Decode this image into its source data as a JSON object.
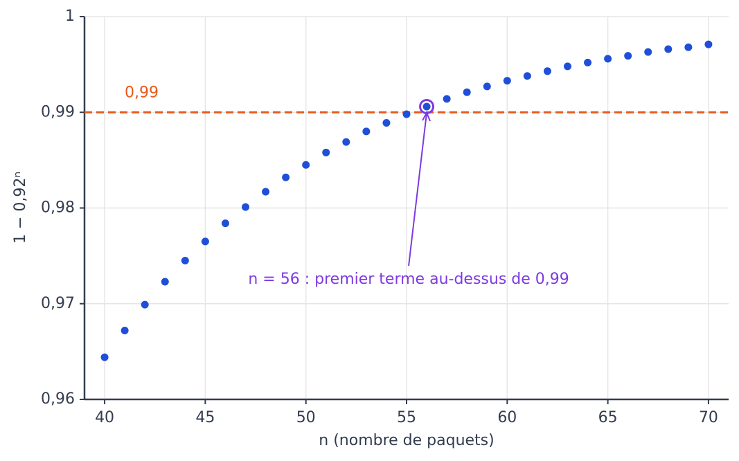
{
  "chart_data": {
    "type": "scatter",
    "xlabel": "n (nombre de paquets)",
    "ylabel": "1 − 0,92ⁿ",
    "x": [
      40,
      41,
      42,
      43,
      44,
      45,
      46,
      47,
      48,
      49,
      50,
      51,
      52,
      53,
      54,
      55,
      56,
      57,
      58,
      59,
      60,
      61,
      62,
      63,
      64,
      65,
      66,
      67,
      68,
      69,
      70
    ],
    "values": [
      0.9644,
      0.9672,
      0.9699,
      0.9723,
      0.9745,
      0.9765,
      0.9784,
      0.9801,
      0.9817,
      0.9832,
      0.9845,
      0.9858,
      0.9869,
      0.988,
      0.9889,
      0.9898,
      0.9906,
      0.9914,
      0.9921,
      0.9927,
      0.9933,
      0.9938,
      0.9943,
      0.9948,
      0.9952,
      0.9956,
      0.9959,
      0.9963,
      0.9966,
      0.9968,
      0.9971
    ],
    "color": "#1f4fd8",
    "xlim": [
      39,
      71
    ],
    "ylim": [
      0.96,
      1
    ],
    "xticks": [
      40,
      45,
      50,
      55,
      60,
      65,
      70
    ],
    "yticks": [
      {
        "value": 0.96,
        "label": "0,96"
      },
      {
        "value": 0.97,
        "label": "0,97"
      },
      {
        "value": 0.98,
        "label": "0,98"
      },
      {
        "value": 0.99,
        "label": "0,99"
      },
      1
    ],
    "grid": true,
    "hline": {
      "value": 0.99,
      "label": "0,99",
      "color": "#e8591a"
    },
    "annotation": {
      "text": "n = 56 : premier terme au-dessus de 0,99",
      "x": 56,
      "color": "#7e3ae0"
    }
  }
}
